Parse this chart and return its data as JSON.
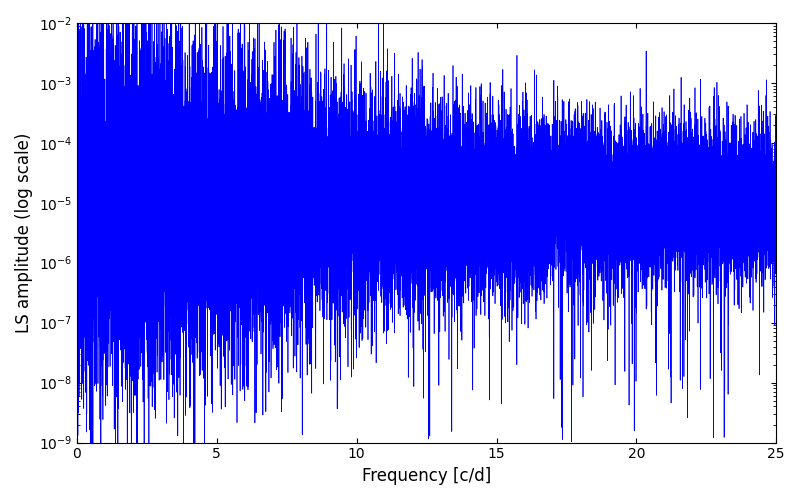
{
  "xlabel": "Frequency [c/d]",
  "ylabel": "LS amplitude (log scale)",
  "xlim": [
    0,
    25
  ],
  "ylim": [
    1e-09,
    0.01
  ],
  "line_color": "#0000ff",
  "line_width": 0.5,
  "freq_max": 25.0,
  "n_points": 20000,
  "seed": 7,
  "background_color": "#ffffff",
  "figsize": [
    8.0,
    5.0
  ],
  "dpi": 100
}
